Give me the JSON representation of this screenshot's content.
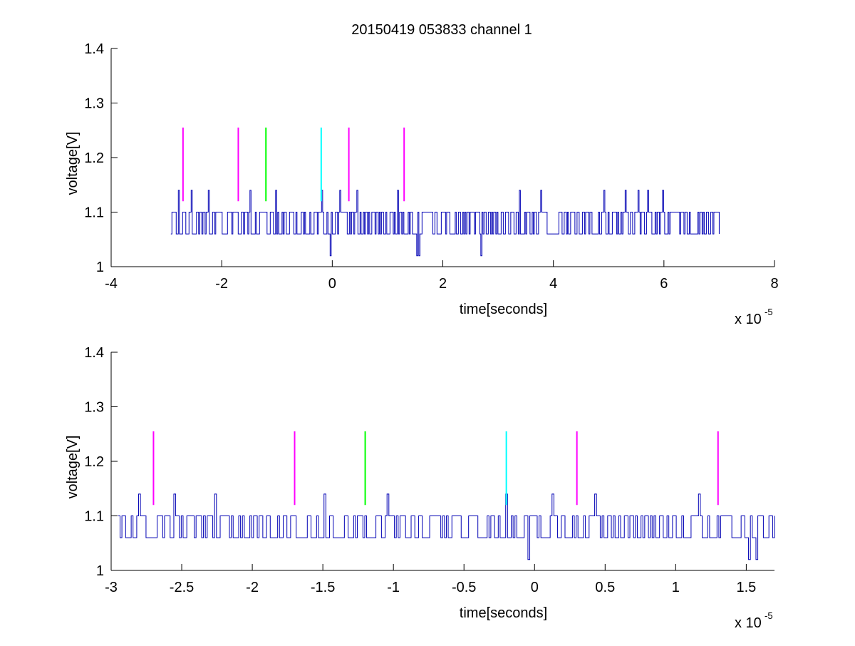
{
  "figure": {
    "title": "20150419 053833 channel 1",
    "background": "#ffffff",
    "signal_color": "#0000b4"
  },
  "chart_data": [
    {
      "type": "line",
      "title": "20150419 053833 channel 1",
      "xlabel": "time[seconds]",
      "ylabel": "voltage[V]",
      "x_multiplier": "x 10",
      "x_exponent": "-5",
      "xlim": [
        -4,
        8
      ],
      "ylim": [
        1,
        1.4
      ],
      "xticks": [
        "-4",
        "-2",
        "0",
        "2",
        "4",
        "6",
        "8"
      ],
      "yticks": [
        "1",
        "1.1",
        "1.2",
        "1.3",
        "1.4"
      ],
      "grid": false,
      "signal": {
        "x_start": -2.92,
        "x_end": 7.0,
        "low": 1.06,
        "high": 1.1,
        "spikes_up": [
          {
            "x": -2.78,
            "y": 1.14
          },
          {
            "x": -2.56,
            "y": 1.14
          },
          {
            "x": -2.25,
            "y": 1.14
          },
          {
            "x": -1.49,
            "y": 1.14
          },
          {
            "x": -1.02,
            "y": 1.14
          },
          {
            "x": -0.19,
            "y": 1.14
          },
          {
            "x": 0.13,
            "y": 1.14
          },
          {
            "x": 0.45,
            "y": 1.14
          },
          {
            "x": 1.17,
            "y": 1.14
          },
          {
            "x": 3.39,
            "y": 1.14
          },
          {
            "x": 3.78,
            "y": 1.14
          },
          {
            "x": 4.92,
            "y": 1.14
          },
          {
            "x": 5.3,
            "y": 1.14
          },
          {
            "x": 5.53,
            "y": 1.14
          },
          {
            "x": 5.71,
            "y": 1.14
          },
          {
            "x": 5.97,
            "y": 1.14
          }
        ],
        "spikes_down": [
          {
            "x": -0.04,
            "y": 1.02
          },
          {
            "x": 1.52,
            "y": 1.02
          },
          {
            "x": 1.56,
            "y": 1.02
          },
          {
            "x": 2.68,
            "y": 1.02
          }
        ]
      },
      "markers": [
        {
          "x": -2.7,
          "y0": 1.12,
          "y1": 1.255,
          "color": "#ff00ff"
        },
        {
          "x": -1.7,
          "y0": 1.12,
          "y1": 1.255,
          "color": "#ff00ff"
        },
        {
          "x": -1.2,
          "y0": 1.12,
          "y1": 1.255,
          "color": "#00ff00"
        },
        {
          "x": -0.2,
          "y0": 1.12,
          "y1": 1.255,
          "color": "#00ffff"
        },
        {
          "x": 0.3,
          "y0": 1.12,
          "y1": 1.255,
          "color": "#ff00ff"
        },
        {
          "x": 1.3,
          "y0": 1.12,
          "y1": 1.255,
          "color": "#ff00ff"
        }
      ]
    },
    {
      "type": "line",
      "title": "",
      "xlabel": "time[seconds]",
      "ylabel": "voltage[V]",
      "x_multiplier": "x 10",
      "x_exponent": "-5",
      "xlim": [
        -3,
        1.7
      ],
      "ylim": [
        1,
        1.4
      ],
      "xticks": [
        "-3",
        "-2.5",
        "-2",
        "-1.5",
        "-1",
        "-0.5",
        "0",
        "0.5",
        "1",
        "1.5"
      ],
      "yticks": [
        "1",
        "1.1",
        "1.2",
        "1.3",
        "1.4"
      ],
      "grid": false,
      "signal": {
        "x_start": -2.95,
        "x_end": 1.7,
        "low": 1.06,
        "high": 1.1,
        "spikes_up": [
          {
            "x": -2.8,
            "y": 1.14
          },
          {
            "x": -2.56,
            "y": 1.14
          },
          {
            "x": -2.27,
            "y": 1.14
          },
          {
            "x": -1.49,
            "y": 1.14
          },
          {
            "x": -1.04,
            "y": 1.14
          },
          {
            "x": -0.21,
            "y": 1.14
          },
          {
            "x": 0.13,
            "y": 1.14
          },
          {
            "x": 0.43,
            "y": 1.14
          },
          {
            "x": 1.16,
            "y": 1.14
          }
        ],
        "spikes_down": [
          {
            "x": -0.05,
            "y": 1.02
          },
          {
            "x": 1.52,
            "y": 1.02
          },
          {
            "x": 1.57,
            "y": 1.02
          }
        ]
      },
      "markers": [
        {
          "x": -2.7,
          "y0": 1.12,
          "y1": 1.255,
          "color": "#ff00ff"
        },
        {
          "x": -1.7,
          "y0": 1.12,
          "y1": 1.255,
          "color": "#ff00ff"
        },
        {
          "x": -1.2,
          "y0": 1.12,
          "y1": 1.255,
          "color": "#00ff00"
        },
        {
          "x": -0.2,
          "y0": 1.12,
          "y1": 1.255,
          "color": "#00ffff"
        },
        {
          "x": 0.3,
          "y0": 1.12,
          "y1": 1.255,
          "color": "#ff00ff"
        },
        {
          "x": 1.3,
          "y0": 1.12,
          "y1": 1.255,
          "color": "#ff00ff"
        }
      ]
    }
  ]
}
